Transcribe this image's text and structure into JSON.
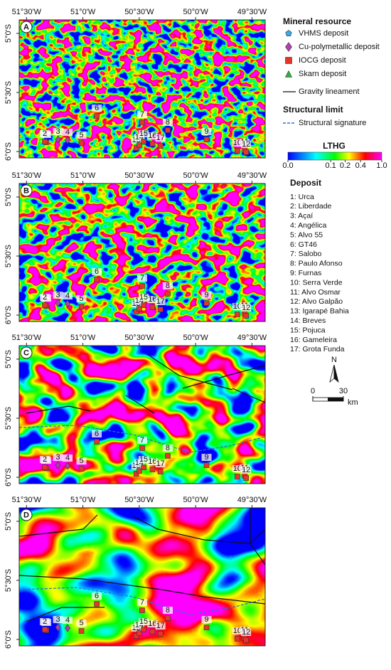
{
  "map": {
    "xlim": [
      -51.565,
      -49.383
    ],
    "ylim": [
      -6.054,
      -4.886
    ],
    "xticks": [
      {
        "value": -51.5,
        "label": "51°30'W"
      },
      {
        "value": -51,
        "label": "51°0'W"
      },
      {
        "value": -50.5,
        "label": "50°30'W"
      },
      {
        "value": -50,
        "label": "50°0'W"
      },
      {
        "value": -49.5,
        "label": "49°30'W"
      }
    ],
    "yticks": [
      {
        "value": -5,
        "label": "5°0'S"
      },
      {
        "value": -5.5,
        "label": "5°30'S"
      },
      {
        "value": -6,
        "label": "6°0'S"
      }
    ]
  },
  "panels": [
    {
      "label": "A"
    },
    {
      "label": "B"
    },
    {
      "label": "C"
    },
    {
      "label": "D"
    }
  ],
  "deposits": [
    {
      "id": 1,
      "lon": -51.325,
      "lat": -5.922,
      "symbol": "square",
      "color": "#e5352b"
    },
    {
      "id": 2,
      "lon": -51.338,
      "lat": -5.916,
      "symbol": "square",
      "color": "#e5352b"
    },
    {
      "id": 3,
      "lon": -51.221,
      "lat": -5.898,
      "symbol": "diamond",
      "color": "#b040b0"
    },
    {
      "id": 4,
      "lon": -51.136,
      "lat": -5.904,
      "symbol": "diamond",
      "color": "#b040b0"
    },
    {
      "id": 5,
      "lon": -51.013,
      "lat": -5.928,
      "symbol": "square",
      "color": "#e5352b"
    },
    {
      "id": 6,
      "lon": -50.877,
      "lat": -5.699,
      "symbol": "square",
      "color": "#e5352b"
    },
    {
      "id": 7,
      "lon": -50.474,
      "lat": -5.753,
      "symbol": "square",
      "color": "#e5352b"
    },
    {
      "id": 8,
      "lon": -50.247,
      "lat": -5.819,
      "symbol": "square",
      "color": "#e5352b"
    },
    {
      "id": 9,
      "lon": -49.903,
      "lat": -5.898,
      "symbol": "square",
      "color": "#e5352b"
    },
    {
      "id": 10,
      "lon": -49.63,
      "lat": -5.994,
      "symbol": "square",
      "color": "#e5352b"
    },
    {
      "id": 11,
      "lon": -49.565,
      "lat": -5.988,
      "symbol": "square",
      "color": "#e5352b"
    },
    {
      "id": 12,
      "lon": -49.552,
      "lat": -6.006,
      "symbol": "square",
      "color": "#e5352b"
    },
    {
      "id": 13,
      "lon": -50.526,
      "lat": -5.97,
      "symbol": "square",
      "color": "#e5352b"
    },
    {
      "id": 14,
      "lon": -50.5,
      "lat": -5.946,
      "symbol": "square",
      "color": "#e5352b"
    },
    {
      "id": 15,
      "lon": -50.461,
      "lat": -5.916,
      "symbol": "square",
      "color": "#e5352b"
    },
    {
      "id": 16,
      "lon": -50.383,
      "lat": -5.934,
      "symbol": "square",
      "color": "#e5352b"
    },
    {
      "id": 17,
      "lon": -50.312,
      "lat": -5.952,
      "symbol": "square",
      "color": "#e5352b"
    }
  ],
  "legend": {
    "title": "Mineral resource",
    "items": [
      {
        "label": "VHMS deposit",
        "symbol": "pentagon",
        "color": "#3fa9e8"
      },
      {
        "label": "Cu-polymetallic deposit",
        "symbol": "diamond",
        "color": "#b040b0"
      },
      {
        "label": "IOCG deposit",
        "symbol": "square",
        "color": "#e5352b"
      },
      {
        "label": "Skarn deposit",
        "symbol": "triangle",
        "color": "#2fb040"
      },
      {
        "label": "Gravity lineament",
        "symbol": "line",
        "color": "#111111"
      }
    ],
    "structural_title": "Structural limit",
    "structural_items": [
      {
        "label": "Structural signature",
        "symbol": "dash",
        "color": "#2a6fd6"
      }
    ]
  },
  "colorbar": {
    "title": "LTHG",
    "ticks": [
      {
        "value": 0,
        "label": "0.0"
      },
      0.1,
      0.2,
      0.4,
      {
        "value": 1,
        "label": "1.0"
      }
    ]
  },
  "deposit_list": {
    "title": "Deposit",
    "items": [
      "1: Urca",
      "2: Liberdade",
      "3: Açaí",
      "4: Angélica",
      "5: Alvo 55",
      "6: GT46",
      "7: Salobo",
      "8: Paulo Afonso",
      "9: Furnas",
      "10: Serra Verde",
      "11: Alvo Osmar",
      "12: Alvo Galpão",
      "13: Igarapé Bahia",
      "14: Breves",
      "15: Pojuca",
      "16: Gameleira",
      "17: Grota Funda"
    ]
  },
  "north": "N",
  "scale": {
    "ticks": [
      0,
      30
    ],
    "unit": "km"
  }
}
